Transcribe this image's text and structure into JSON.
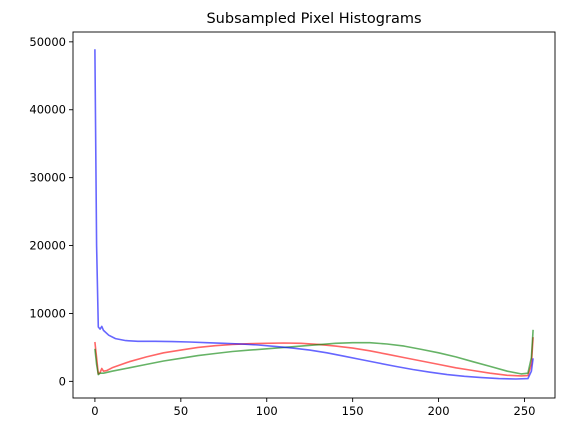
{
  "chart_data": {
    "type": "line",
    "title": "Subsampled Pixel Histograms",
    "xlabel": "",
    "ylabel": "",
    "xlim": [
      -12.75,
      267.75
    ],
    "ylim": [
      -2450,
      51450
    ],
    "xticks": [
      0,
      50,
      100,
      150,
      200,
      250
    ],
    "yticks": [
      0,
      10000,
      20000,
      30000,
      40000,
      50000
    ],
    "grid": false,
    "series": [
      {
        "color": "#ff0000",
        "points": [
          [
            0,
            5800
          ],
          [
            1,
            3500
          ],
          [
            2,
            1100
          ],
          [
            3,
            1300
          ],
          [
            4,
            1900
          ],
          [
            5,
            1500
          ],
          [
            7,
            1600
          ],
          [
            10,
            2000
          ],
          [
            20,
            2900
          ],
          [
            30,
            3600
          ],
          [
            40,
            4200
          ],
          [
            50,
            4600
          ],
          [
            60,
            5000
          ],
          [
            70,
            5250
          ],
          [
            80,
            5450
          ],
          [
            90,
            5550
          ],
          [
            100,
            5600
          ],
          [
            110,
            5650
          ],
          [
            120,
            5600
          ],
          [
            130,
            5450
          ],
          [
            140,
            5200
          ],
          [
            150,
            4900
          ],
          [
            160,
            4500
          ],
          [
            170,
            4000
          ],
          [
            180,
            3500
          ],
          [
            190,
            3000
          ],
          [
            200,
            2500
          ],
          [
            210,
            2000
          ],
          [
            220,
            1600
          ],
          [
            230,
            1200
          ],
          [
            240,
            900
          ],
          [
            248,
            800
          ],
          [
            252,
            850
          ],
          [
            254,
            2500
          ],
          [
            255,
            6500
          ]
        ]
      },
      {
        "color": "#008000",
        "points": [
          [
            0,
            4800
          ],
          [
            1,
            2500
          ],
          [
            2,
            1000
          ],
          [
            3,
            1200
          ],
          [
            5,
            1200
          ],
          [
            10,
            1500
          ],
          [
            20,
            2000
          ],
          [
            30,
            2500
          ],
          [
            40,
            3000
          ],
          [
            50,
            3400
          ],
          [
            60,
            3800
          ],
          [
            70,
            4100
          ],
          [
            80,
            4400
          ],
          [
            90,
            4600
          ],
          [
            100,
            4800
          ],
          [
            110,
            5000
          ],
          [
            120,
            5200
          ],
          [
            130,
            5400
          ],
          [
            140,
            5600
          ],
          [
            150,
            5700
          ],
          [
            160,
            5700
          ],
          [
            170,
            5500
          ],
          [
            180,
            5200
          ],
          [
            190,
            4700
          ],
          [
            200,
            4200
          ],
          [
            210,
            3600
          ],
          [
            220,
            2900
          ],
          [
            230,
            2200
          ],
          [
            240,
            1500
          ],
          [
            248,
            1100
          ],
          [
            252,
            1200
          ],
          [
            254,
            3500
          ],
          [
            255,
            7600
          ]
        ]
      },
      {
        "color": "#0000ff",
        "points": [
          [
            0,
            48900
          ],
          [
            1,
            20000
          ],
          [
            2,
            8000
          ],
          [
            3,
            7700
          ],
          [
            4,
            8100
          ],
          [
            5,
            7500
          ],
          [
            8,
            6800
          ],
          [
            12,
            6300
          ],
          [
            18,
            6000
          ],
          [
            25,
            5900
          ],
          [
            35,
            5900
          ],
          [
            45,
            5850
          ],
          [
            55,
            5800
          ],
          [
            65,
            5700
          ],
          [
            75,
            5600
          ],
          [
            85,
            5500
          ],
          [
            95,
            5350
          ],
          [
            105,
            5150
          ],
          [
            115,
            4900
          ],
          [
            125,
            4600
          ],
          [
            135,
            4200
          ],
          [
            145,
            3700
          ],
          [
            155,
            3200
          ],
          [
            165,
            2700
          ],
          [
            175,
            2200
          ],
          [
            185,
            1750
          ],
          [
            195,
            1350
          ],
          [
            205,
            1000
          ],
          [
            215,
            750
          ],
          [
            225,
            550
          ],
          [
            235,
            400
          ],
          [
            245,
            350
          ],
          [
            252,
            400
          ],
          [
            254,
            1500
          ],
          [
            255,
            3400
          ]
        ]
      }
    ]
  }
}
